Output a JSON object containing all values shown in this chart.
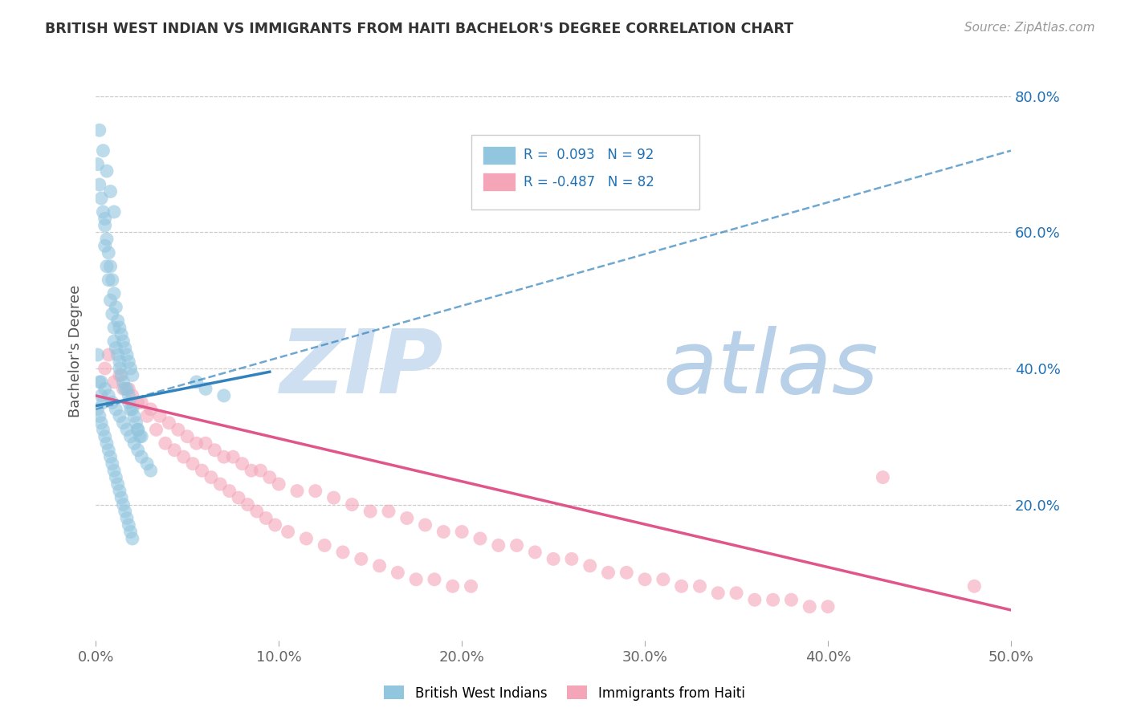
{
  "title": "BRITISH WEST INDIAN VS IMMIGRANTS FROM HAITI BACHELOR'S DEGREE CORRELATION CHART",
  "source": "Source: ZipAtlas.com",
  "ylabel": "Bachelor's Degree",
  "legend_label1": "British West Indians",
  "legend_label2": "Immigrants from Haiti",
  "R1": 0.093,
  "N1": 92,
  "R2": -0.487,
  "N2": 82,
  "color_blue": "#92c5de",
  "color_pink": "#f4a6b8",
  "color_blue_line": "#3182bd",
  "color_pink_line": "#e0558a",
  "color_text_blue": "#2171b5",
  "watermark_zip_color": "#c5d8ef",
  "watermark_atlas_color": "#b8cfe8",
  "x_min": 0.0,
  "x_max": 0.5,
  "y_min": 0.0,
  "y_max": 0.85,
  "blue_scatter_x": [
    0.001,
    0.002,
    0.003,
    0.004,
    0.005,
    0.005,
    0.006,
    0.007,
    0.008,
    0.009,
    0.01,
    0.01,
    0.011,
    0.012,
    0.013,
    0.013,
    0.014,
    0.015,
    0.016,
    0.017,
    0.018,
    0.018,
    0.019,
    0.02,
    0.021,
    0.022,
    0.023,
    0.023,
    0.024,
    0.025,
    0.001,
    0.002,
    0.003,
    0.004,
    0.005,
    0.006,
    0.007,
    0.008,
    0.009,
    0.01,
    0.011,
    0.012,
    0.013,
    0.014,
    0.015,
    0.016,
    0.017,
    0.018,
    0.019,
    0.02,
    0.001,
    0.002,
    0.003,
    0.004,
    0.005,
    0.006,
    0.007,
    0.008,
    0.009,
    0.01,
    0.011,
    0.012,
    0.013,
    0.014,
    0.015,
    0.016,
    0.017,
    0.018,
    0.019,
    0.02,
    0.003,
    0.005,
    0.007,
    0.009,
    0.011,
    0.013,
    0.015,
    0.017,
    0.019,
    0.021,
    0.023,
    0.025,
    0.028,
    0.03,
    0.002,
    0.004,
    0.006,
    0.008,
    0.01,
    0.055,
    0.06,
    0.07
  ],
  "blue_scatter_y": [
    0.42,
    0.38,
    0.36,
    0.35,
    0.62,
    0.58,
    0.55,
    0.53,
    0.5,
    0.48,
    0.46,
    0.44,
    0.43,
    0.42,
    0.41,
    0.4,
    0.39,
    0.38,
    0.37,
    0.37,
    0.36,
    0.35,
    0.34,
    0.34,
    0.33,
    0.32,
    0.31,
    0.31,
    0.3,
    0.3,
    0.7,
    0.67,
    0.65,
    0.63,
    0.61,
    0.59,
    0.57,
    0.55,
    0.53,
    0.51,
    0.49,
    0.47,
    0.46,
    0.45,
    0.44,
    0.43,
    0.42,
    0.41,
    0.4,
    0.39,
    0.34,
    0.33,
    0.32,
    0.31,
    0.3,
    0.29,
    0.28,
    0.27,
    0.26,
    0.25,
    0.24,
    0.23,
    0.22,
    0.21,
    0.2,
    0.19,
    0.18,
    0.17,
    0.16,
    0.15,
    0.38,
    0.37,
    0.36,
    0.35,
    0.34,
    0.33,
    0.32,
    0.31,
    0.3,
    0.29,
    0.28,
    0.27,
    0.26,
    0.25,
    0.75,
    0.72,
    0.69,
    0.66,
    0.63,
    0.38,
    0.37,
    0.36
  ],
  "pink_scatter_x": [
    0.005,
    0.01,
    0.015,
    0.02,
    0.025,
    0.03,
    0.035,
    0.04,
    0.045,
    0.05,
    0.055,
    0.06,
    0.065,
    0.07,
    0.075,
    0.08,
    0.085,
    0.09,
    0.095,
    0.1,
    0.11,
    0.12,
    0.13,
    0.14,
    0.15,
    0.16,
    0.17,
    0.18,
    0.19,
    0.2,
    0.21,
    0.22,
    0.23,
    0.24,
    0.25,
    0.26,
    0.27,
    0.28,
    0.29,
    0.3,
    0.31,
    0.32,
    0.33,
    0.34,
    0.35,
    0.36,
    0.37,
    0.38,
    0.39,
    0.4,
    0.007,
    0.013,
    0.018,
    0.023,
    0.028,
    0.033,
    0.038,
    0.043,
    0.048,
    0.053,
    0.058,
    0.063,
    0.068,
    0.073,
    0.078,
    0.083,
    0.088,
    0.093,
    0.098,
    0.105,
    0.115,
    0.125,
    0.135,
    0.145,
    0.155,
    0.165,
    0.175,
    0.185,
    0.195,
    0.205,
    0.43,
    0.48
  ],
  "pink_scatter_y": [
    0.4,
    0.38,
    0.37,
    0.36,
    0.35,
    0.34,
    0.33,
    0.32,
    0.31,
    0.3,
    0.29,
    0.29,
    0.28,
    0.27,
    0.27,
    0.26,
    0.25,
    0.25,
    0.24,
    0.23,
    0.22,
    0.22,
    0.21,
    0.2,
    0.19,
    0.19,
    0.18,
    0.17,
    0.16,
    0.16,
    0.15,
    0.14,
    0.14,
    0.13,
    0.12,
    0.12,
    0.11,
    0.1,
    0.1,
    0.09,
    0.09,
    0.08,
    0.08,
    0.07,
    0.07,
    0.06,
    0.06,
    0.06,
    0.05,
    0.05,
    0.42,
    0.39,
    0.37,
    0.35,
    0.33,
    0.31,
    0.29,
    0.28,
    0.27,
    0.26,
    0.25,
    0.24,
    0.23,
    0.22,
    0.21,
    0.2,
    0.19,
    0.18,
    0.17,
    0.16,
    0.15,
    0.14,
    0.13,
    0.12,
    0.11,
    0.1,
    0.09,
    0.09,
    0.08,
    0.08,
    0.24,
    0.08
  ],
  "blue_solid_line_x": [
    0.0,
    0.095
  ],
  "blue_solid_line_y": [
    0.345,
    0.395
  ],
  "blue_dash_line_x": [
    0.0,
    0.5
  ],
  "blue_dash_line_y": [
    0.34,
    0.72
  ],
  "pink_line_x": [
    0.0,
    0.5
  ],
  "pink_line_y": [
    0.36,
    0.045
  ]
}
